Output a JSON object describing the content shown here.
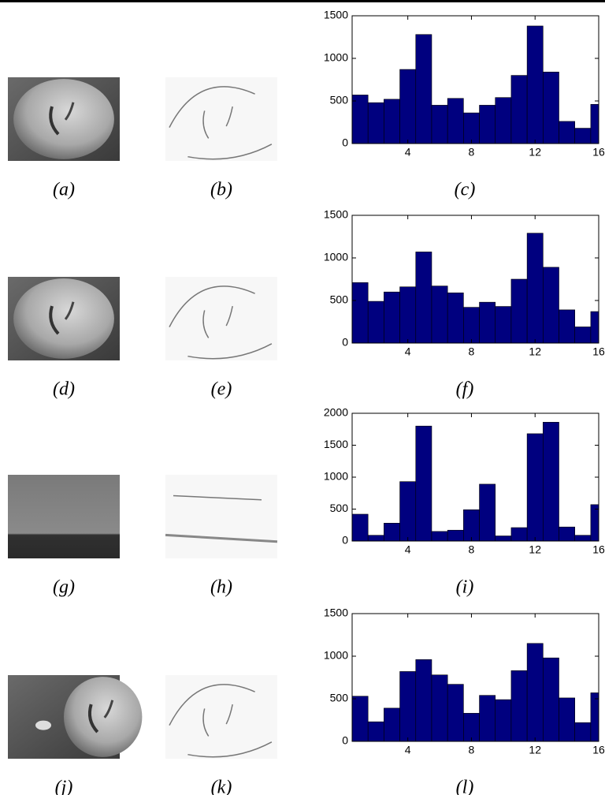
{
  "images": [
    {
      "caption": "(a)"
    },
    {
      "caption": "(b)"
    },
    {
      "caption": "(d)"
    },
    {
      "caption": "(e)"
    },
    {
      "caption": "(g)"
    },
    {
      "caption": "(h)"
    },
    {
      "caption": "(j)"
    },
    {
      "caption": "(k)"
    }
  ],
  "chart_data": [
    {
      "type": "bar",
      "caption": "(c)",
      "color": "#00007f",
      "x": [
        1,
        2,
        3,
        4,
        5,
        6,
        7,
        8,
        9,
        10,
        11,
        12,
        13,
        14,
        15,
        16
      ],
      "values": [
        570,
        480,
        520,
        870,
        1280,
        450,
        530,
        360,
        450,
        540,
        800,
        1380,
        840,
        260,
        180,
        460
      ],
      "xlim": [
        0.5,
        16
      ],
      "xticks": [
        4,
        8,
        12,
        16
      ],
      "ylim": [
        0,
        1500
      ],
      "yticks": [
        0,
        500,
        1000,
        1500
      ]
    },
    {
      "type": "bar",
      "caption": "(f)",
      "color": "#00007f",
      "x": [
        1,
        2,
        3,
        4,
        5,
        6,
        7,
        8,
        9,
        10,
        11,
        12,
        13,
        14,
        15,
        16
      ],
      "values": [
        710,
        490,
        600,
        660,
        1070,
        670,
        590,
        420,
        480,
        430,
        750,
        1290,
        890,
        390,
        190,
        370
      ],
      "xlim": [
        0.5,
        16
      ],
      "xticks": [
        4,
        8,
        12,
        16
      ],
      "ylim": [
        0,
        1500
      ],
      "yticks": [
        0,
        500,
        1000,
        1500
      ]
    },
    {
      "type": "bar",
      "caption": "(i)",
      "color": "#00007f",
      "x": [
        1,
        2,
        3,
        4,
        5,
        6,
        7,
        8,
        9,
        10,
        11,
        12,
        13,
        14,
        15,
        16
      ],
      "values": [
        420,
        90,
        280,
        930,
        1800,
        150,
        170,
        490,
        890,
        80,
        210,
        1680,
        1860,
        220,
        90,
        570
      ],
      "xlim": [
        0.5,
        16
      ],
      "xticks": [
        4,
        8,
        12,
        16
      ],
      "ylim": [
        0,
        2000
      ],
      "yticks": [
        0,
        500,
        1000,
        1500,
        2000
      ]
    },
    {
      "type": "bar",
      "caption": "(l)",
      "color": "#00007f",
      "x": [
        1,
        2,
        3,
        4,
        5,
        6,
        7,
        8,
        9,
        10,
        11,
        12,
        13,
        14,
        15,
        16
      ],
      "values": [
        530,
        230,
        390,
        820,
        960,
        780,
        670,
        330,
        540,
        490,
        830,
        1150,
        980,
        510,
        220,
        570
      ],
      "xlim": [
        0.5,
        16
      ],
      "xticks": [
        4,
        8,
        12,
        16
      ],
      "ylim": [
        0,
        1500
      ],
      "yticks": [
        0,
        500,
        1000,
        1500
      ]
    }
  ]
}
